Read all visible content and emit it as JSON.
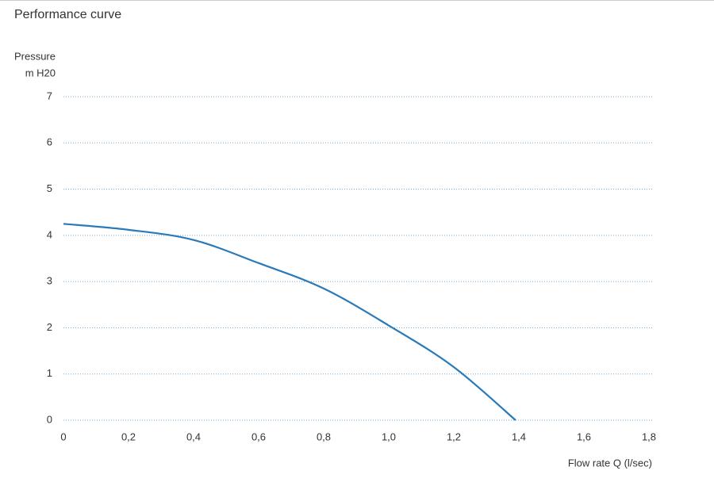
{
  "chart_data": {
    "type": "line",
    "title": "Performance curve",
    "ylabel": "Pressure",
    "ylabel_unit": "m H20",
    "xlabel": "Flow rate Q (l/sec)",
    "x": [
      0,
      0.2,
      0.4,
      0.6,
      0.8,
      1.0,
      1.2,
      1.39
    ],
    "series": [
      {
        "color": "#2a7ab9",
        "values": [
          4.25,
          4.12,
          3.9,
          3.4,
          2.85,
          2.05,
          1.15,
          0
        ]
      }
    ],
    "xlim": [
      0,
      1.8
    ],
    "xticks": [
      0,
      {
        "value": 0.2,
        "label": "0,2"
      },
      {
        "value": 0.4,
        "label": "0,4"
      },
      {
        "value": 0.6,
        "label": "0,6"
      },
      {
        "value": 0.8,
        "label": "0,8"
      },
      {
        "value": 1.0,
        "label": "1,0"
      },
      {
        "value": 1.2,
        "label": "1,2"
      },
      {
        "value": 1.4,
        "label": "1,4"
      },
      {
        "value": 1.6,
        "label": "1,6"
      },
      {
        "value": 1.8,
        "label": "1,8"
      }
    ],
    "ylim": [
      0,
      7
    ],
    "yticks": [
      0,
      1,
      2,
      3,
      4,
      5,
      6,
      7
    ],
    "grid": true
  }
}
